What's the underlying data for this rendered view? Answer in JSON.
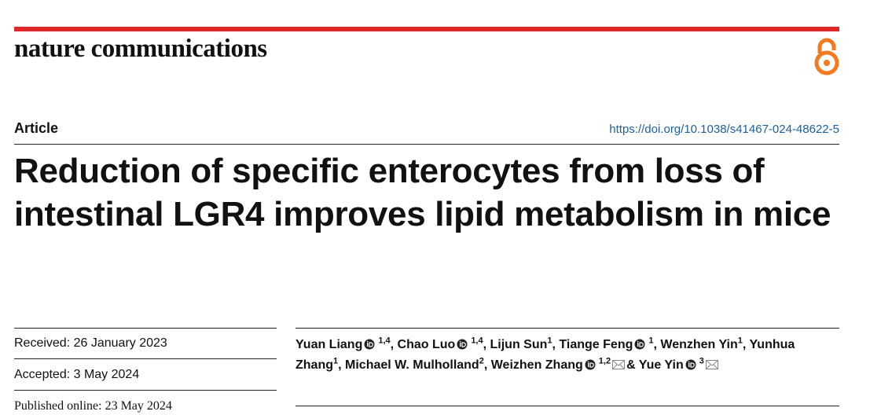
{
  "header": {
    "journal": "nature communications"
  },
  "article": {
    "type": "Article",
    "doi": "https://doi.org/10.1038/s41467-024-48622-5",
    "title": "Reduction of specific enterocytes from loss of intestinal LGR4 improves lipid metabolism in mice"
  },
  "dates": [
    {
      "label": "Received:",
      "value": "26 January 2023"
    },
    {
      "label": "Accepted:",
      "value": "3 May 2024"
    },
    {
      "label": "Published online:",
      "value": "23 May 2024"
    }
  ],
  "authors": [
    {
      "name": "Yuan Liang",
      "orcid": true,
      "affiliations": "1,4",
      "separator": ","
    },
    {
      "name": "Chao Luo",
      "orcid": true,
      "affiliations": "1,4",
      "separator": ","
    },
    {
      "name": "Lijun Sun",
      "orcid": false,
      "affiliations": "1",
      "separator": ","
    },
    {
      "name": "Tiange Feng",
      "orcid": true,
      "affiliations": "1",
      "separator": ","
    },
    {
      "name": "Wenzhen Yin",
      "orcid": false,
      "affiliations": "1",
      "separator": ","
    },
    {
      "name": "Yunhua Zhang",
      "orcid": false,
      "affiliations": "1",
      "separator": ","
    },
    {
      "name": "Michael W. Mulholland",
      "orcid": false,
      "affiliations": "2",
      "separator": ","
    },
    {
      "name": "Weizhen Zhang",
      "orcid": true,
      "affiliations": "1,2",
      "corresponding": true,
      "separator": "&"
    },
    {
      "name": "Yue Yin",
      "orcid": true,
      "affiliations": "3",
      "corresponding": true
    }
  ]
}
